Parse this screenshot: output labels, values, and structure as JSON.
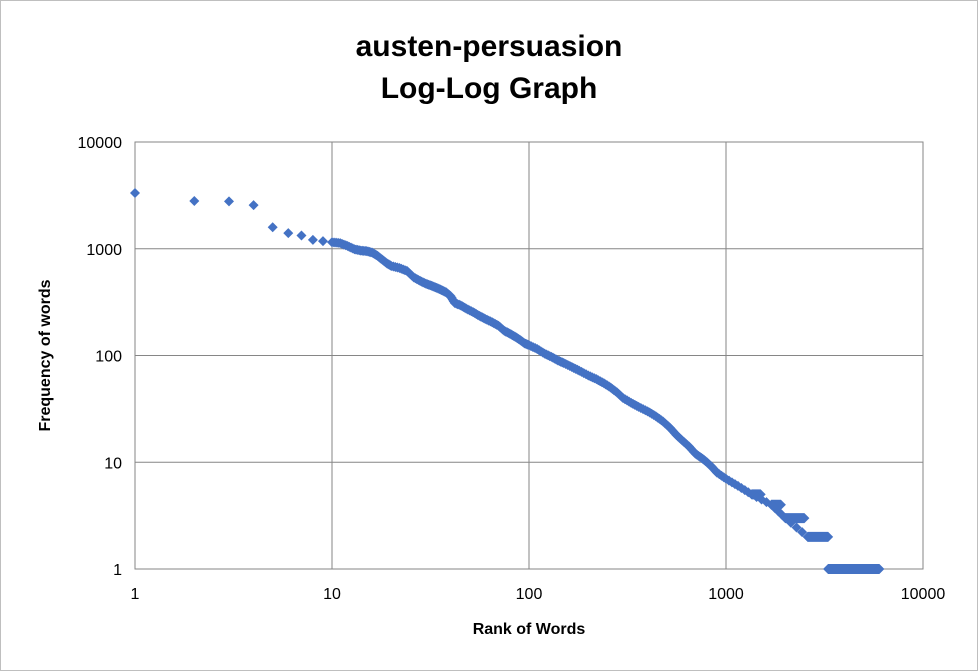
{
  "chart_data": {
    "type": "scatter",
    "title": "austen-persuasion",
    "subtitle": "Log-Log Graph",
    "xlabel": "Rank of Words",
    "ylabel": "Frequency of words",
    "x_scale": "log",
    "y_scale": "log",
    "xlim": [
      1,
      10000
    ],
    "ylim": [
      1,
      10000
    ],
    "x_ticks": [
      "1",
      "10",
      "100",
      "1000",
      "10000"
    ],
    "y_ticks": [
      "1",
      "10",
      "100",
      "1000",
      "10000"
    ],
    "grid": true,
    "legend": "none",
    "marker": "diamond",
    "color": "#4472C4",
    "series": [
      {
        "points": [
          [
            1,
            3330
          ],
          [
            2,
            2800
          ],
          [
            3,
            2780
          ],
          [
            4,
            2560
          ],
          [
            5,
            1590
          ],
          [
            6,
            1400
          ],
          [
            7,
            1330
          ],
          [
            8,
            1210
          ],
          [
            9,
            1180
          ],
          [
            10,
            1150
          ],
          [
            11,
            1130
          ],
          [
            12,
            1060
          ],
          [
            13,
            990
          ],
          [
            14,
            960
          ],
          [
            15,
            950
          ],
          [
            16,
            920
          ],
          [
            17,
            860
          ],
          [
            18,
            790
          ],
          [
            19,
            730
          ],
          [
            20,
            690
          ],
          [
            22,
            660
          ],
          [
            24,
            620
          ],
          [
            26,
            540
          ],
          [
            28,
            500
          ],
          [
            30,
            470
          ],
          [
            32,
            450
          ],
          [
            34,
            430
          ],
          [
            36,
            410
          ],
          [
            38,
            390
          ],
          [
            40,
            360
          ],
          [
            42,
            310
          ],
          [
            45,
            295
          ],
          [
            48,
            275
          ],
          [
            52,
            255
          ],
          [
            56,
            235
          ],
          [
            60,
            220
          ],
          [
            65,
            205
          ],
          [
            70,
            190
          ],
          [
            75,
            170
          ],
          [
            80,
            160
          ],
          [
            85,
            150
          ],
          [
            90,
            140
          ],
          [
            95,
            130
          ],
          [
            100,
            125
          ],
          [
            110,
            115
          ],
          [
            120,
            104
          ],
          [
            130,
            97
          ],
          [
            140,
            90
          ],
          [
            150,
            85
          ],
          [
            165,
            78
          ],
          [
            180,
            72
          ],
          [
            200,
            65
          ],
          [
            220,
            60
          ],
          [
            240,
            55
          ],
          [
            260,
            50
          ],
          [
            280,
            45
          ],
          [
            300,
            40
          ],
          [
            330,
            36
          ],
          [
            360,
            33
          ],
          [
            400,
            30
          ],
          [
            440,
            27
          ],
          [
            480,
            24
          ],
          [
            520,
            21
          ],
          [
            560,
            18
          ],
          [
            600,
            16
          ],
          [
            650,
            14
          ],
          [
            700,
            12
          ],
          [
            750,
            11
          ],
          [
            800,
            10
          ],
          [
            850,
            9
          ],
          [
            900,
            8
          ],
          [
            1000,
            7
          ],
          [
            1150,
            6
          ],
          [
            1350,
            5
          ],
          [
            1700,
            4
          ],
          [
            2000,
            3
          ],
          [
            2600,
            2
          ],
          [
            3300,
            1
          ],
          [
            4000,
            1
          ],
          [
            5000,
            1
          ],
          [
            6000,
            1
          ]
        ]
      }
    ],
    "ranges": [
      {
        "from": 1350,
        "to": 1500,
        "y": 5
      },
      {
        "from": 1700,
        "to": 1900,
        "y": 4
      },
      {
        "from": 2000,
        "to": 2500,
        "y": 3
      },
      {
        "from": 2600,
        "to": 3300,
        "y": 2
      },
      {
        "from": 3300,
        "to": 6000,
        "y": 1
      }
    ]
  }
}
